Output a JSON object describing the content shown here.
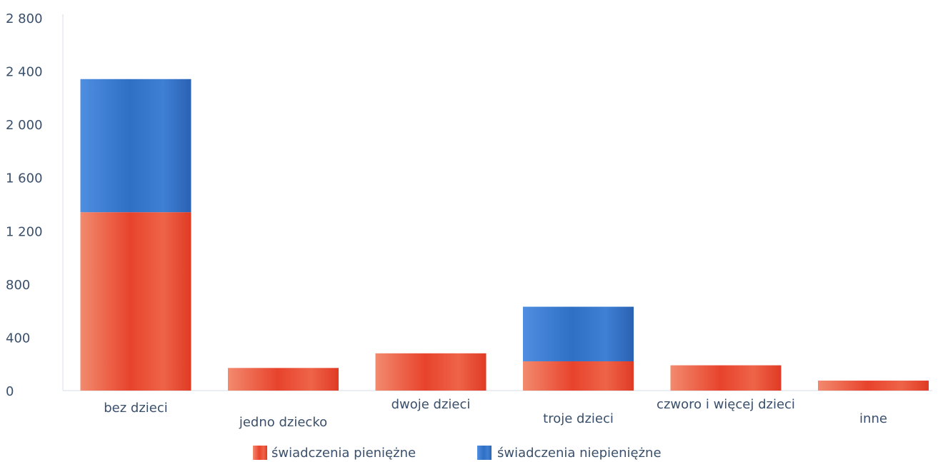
{
  "chart_data": {
    "type": "bar",
    "stacked": true,
    "categories": [
      "bez dzieci",
      "jedno dziecko",
      "dwoje dzieci",
      "troje dzieci",
      "czworo i więcej dzieci",
      "inne"
    ],
    "series": [
      {
        "name": "świadczenia pieniężne",
        "values": [
          1340,
          170,
          280,
          220,
          190,
          75
        ],
        "color": "#e8432c"
      },
      {
        "name": "świadczenia niepieniężne",
        "values": [
          1000,
          0,
          0,
          410,
          0,
          0
        ],
        "color": "#2f6fc4"
      }
    ],
    "ylim": [
      0,
      2800
    ],
    "yticks": [
      0,
      400,
      800,
      1200,
      1600,
      2000,
      2400,
      2800
    ],
    "ytick_labels": [
      "0",
      "400",
      "800",
      "1 200",
      "1 600",
      "2 000",
      "2 400",
      "2 800"
    ],
    "title": "",
    "xlabel": "",
    "ylabel": "",
    "legend_position": "bottom-center",
    "grid": false
  }
}
